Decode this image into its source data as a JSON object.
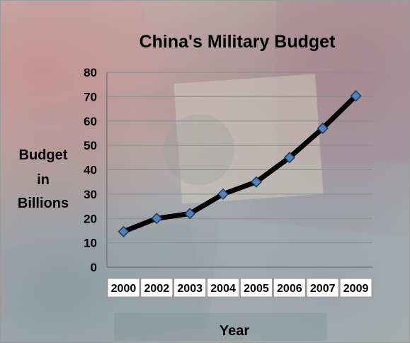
{
  "chart_data": {
    "type": "line",
    "title": "China's Military Budget",
    "xlabel": "Year",
    "ylabel_lines": [
      "Budget",
      "in",
      "Billions"
    ],
    "categories": [
      "2000",
      "2002",
      "2003",
      "2004",
      "2005",
      "2006",
      "2007",
      "2009"
    ],
    "values": [
      14.6,
      20,
      22,
      30,
      35,
      45,
      57,
      70.3
    ],
    "ylim": [
      0,
      80
    ],
    "yticks": [
      0,
      10,
      20,
      30,
      40,
      50,
      60,
      70,
      80
    ],
    "grid": true,
    "line_color": "#000000",
    "marker_color": "#4f81bd",
    "background": "banknote photo (Chinese renminbi)"
  }
}
